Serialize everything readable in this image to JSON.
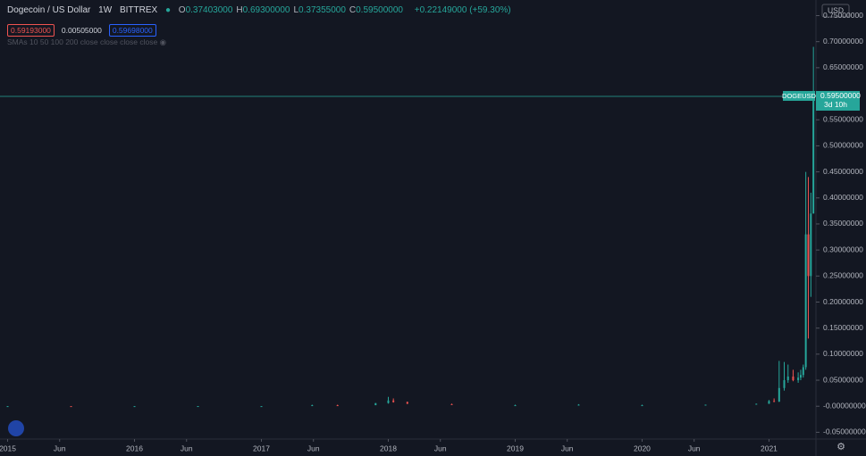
{
  "header": {
    "symbol": "Dogecoin / US Dollar",
    "interval": "1W",
    "exchange": "BITTREX",
    "ohlc": [
      {
        "key": "O",
        "value": "0.37403000"
      },
      {
        "key": "H",
        "value": "0.69300000"
      },
      {
        "key": "L",
        "value": "0.37355000"
      },
      {
        "key": "C",
        "value": "0.59500000"
      }
    ],
    "change": "+0.22149000 (+59.30%)",
    "boxes": [
      "0.59193000",
      "0.00505000",
      "0.59698000"
    ],
    "indicator": "SMAs 10 50 100 200 close close close close"
  },
  "currency": "USD",
  "chart_data": {
    "type": "candlestick",
    "up_color": "#26a69a",
    "down_color": "#ef5350",
    "xlim": [
      2014.94,
      2021.37
    ],
    "ylim": [
      -0.063,
      0.78
    ],
    "xticks": [
      2015,
      {
        "value": 2015.41,
        "label": "Jun"
      },
      2016,
      {
        "value": 2016.41,
        "label": "Jun"
      },
      2017,
      {
        "value": 2017.41,
        "label": "Jun"
      },
      2018,
      {
        "value": 2018.41,
        "label": "Jun"
      },
      2019,
      {
        "value": 2019.41,
        "label": "Jun"
      },
      2020,
      {
        "value": 2020.41,
        "label": "Jun"
      },
      2021
    ],
    "yticks": [
      {
        "value": 0.75,
        "label": "0.75000000"
      },
      {
        "value": 0.7,
        "label": "0.70000000"
      },
      {
        "value": 0.65,
        "label": "0.65000000"
      },
      {
        "value": 0.55,
        "label": "0.55000000"
      },
      {
        "value": 0.5,
        "label": "0.50000000"
      },
      {
        "value": 0.45,
        "label": "0.45000000"
      },
      {
        "value": 0.4,
        "label": "0.40000000"
      },
      {
        "value": 0.35,
        "label": "0.35000000"
      },
      {
        "value": 0.3,
        "label": "0.30000000"
      },
      {
        "value": 0.25,
        "label": "0.25000000"
      },
      {
        "value": 0.2,
        "label": "0.20000000"
      },
      {
        "value": 0.15,
        "label": "0.15000000"
      },
      {
        "value": 0.1,
        "label": "0.10000000"
      },
      {
        "value": 0.05,
        "label": "0.05000000"
      },
      {
        "value": 0,
        "label": "-0.00000000"
      },
      {
        "value": -0.05,
        "label": "-0.05000000"
      }
    ],
    "price_line": {
      "name": "DOGEUSD",
      "value": 0.595,
      "label": "0.59500000",
      "countdown": "3d 10h"
    },
    "candles": [
      {
        "x": 2015.0,
        "open": 0.0002,
        "high": 0.0003,
        "low": 0.0001,
        "close": 0.0002
      },
      {
        "x": 2015.5,
        "open": 0.0002,
        "high": 0.0003,
        "low": 0.0001,
        "close": 0.0001
      },
      {
        "x": 2016.0,
        "open": 0.0002,
        "high": 0.0003,
        "low": 0.0001,
        "close": 0.0002
      },
      {
        "x": 2016.5,
        "open": 0.0002,
        "high": 0.0004,
        "low": 0.0002,
        "close": 0.0003
      },
      {
        "x": 2017.0,
        "open": 0.0002,
        "high": 0.0003,
        "low": 0.0002,
        "close": 0.0002
      },
      {
        "x": 2017.4,
        "open": 0.0006,
        "high": 0.003,
        "low": 0.0005,
        "close": 0.002
      },
      {
        "x": 2017.6,
        "open": 0.002,
        "high": 0.003,
        "low": 0.001,
        "close": 0.0015
      },
      {
        "x": 2017.9,
        "open": 0.002,
        "high": 0.006,
        "low": 0.002,
        "close": 0.006
      },
      {
        "x": 2018.0,
        "open": 0.006,
        "high": 0.018,
        "low": 0.005,
        "close": 0.011
      },
      {
        "x": 2018.04,
        "open": 0.011,
        "high": 0.015,
        "low": 0.007,
        "close": 0.008
      },
      {
        "x": 2018.15,
        "open": 0.008,
        "high": 0.009,
        "low": 0.004,
        "close": 0.005
      },
      {
        "x": 2018.5,
        "open": 0.004,
        "high": 0.005,
        "low": 0.003,
        "close": 0.003
      },
      {
        "x": 2019.0,
        "open": 0.002,
        "high": 0.003,
        "low": 0.002,
        "close": 0.002
      },
      {
        "x": 2019.5,
        "open": 0.003,
        "high": 0.004,
        "low": 0.003,
        "close": 0.003
      },
      {
        "x": 2020.0,
        "open": 0.002,
        "high": 0.003,
        "low": 0.002,
        "close": 0.002
      },
      {
        "x": 2020.5,
        "open": 0.003,
        "high": 0.003,
        "low": 0.002,
        "close": 0.003
      },
      {
        "x": 2020.9,
        "open": 0.003,
        "high": 0.005,
        "low": 0.003,
        "close": 0.0047
      },
      {
        "x": 2021.0,
        "open": 0.0047,
        "high": 0.012,
        "low": 0.0045,
        "close": 0.01
      },
      {
        "x": 2021.04,
        "open": 0.01,
        "high": 0.015,
        "low": 0.008,
        "close": 0.009
      },
      {
        "x": 2021.08,
        "open": 0.009,
        "high": 0.087,
        "low": 0.008,
        "close": 0.035
      },
      {
        "x": 2021.12,
        "open": 0.035,
        "high": 0.085,
        "low": 0.03,
        "close": 0.05
      },
      {
        "x": 2021.15,
        "open": 0.05,
        "high": 0.08,
        "low": 0.045,
        "close": 0.057
      },
      {
        "x": 2021.19,
        "open": 0.057,
        "high": 0.07,
        "low": 0.048,
        "close": 0.05
      },
      {
        "x": 2021.23,
        "open": 0.05,
        "high": 0.065,
        "low": 0.045,
        "close": 0.055
      },
      {
        "x": 2021.25,
        "open": 0.055,
        "high": 0.07,
        "low": 0.05,
        "close": 0.06
      },
      {
        "x": 2021.27,
        "open": 0.06,
        "high": 0.08,
        "low": 0.055,
        "close": 0.075
      },
      {
        "x": 2021.29,
        "open": 0.075,
        "high": 0.45,
        "low": 0.07,
        "close": 0.33
      },
      {
        "x": 2021.31,
        "open": 0.33,
        "high": 0.44,
        "low": 0.13,
        "close": 0.25
      },
      {
        "x": 2021.33,
        "open": 0.25,
        "high": 0.41,
        "low": 0.21,
        "close": 0.37
      },
      {
        "x": 2021.35,
        "open": 0.37,
        "high": 0.69,
        "low": 0.37,
        "close": 0.595
      }
    ]
  }
}
